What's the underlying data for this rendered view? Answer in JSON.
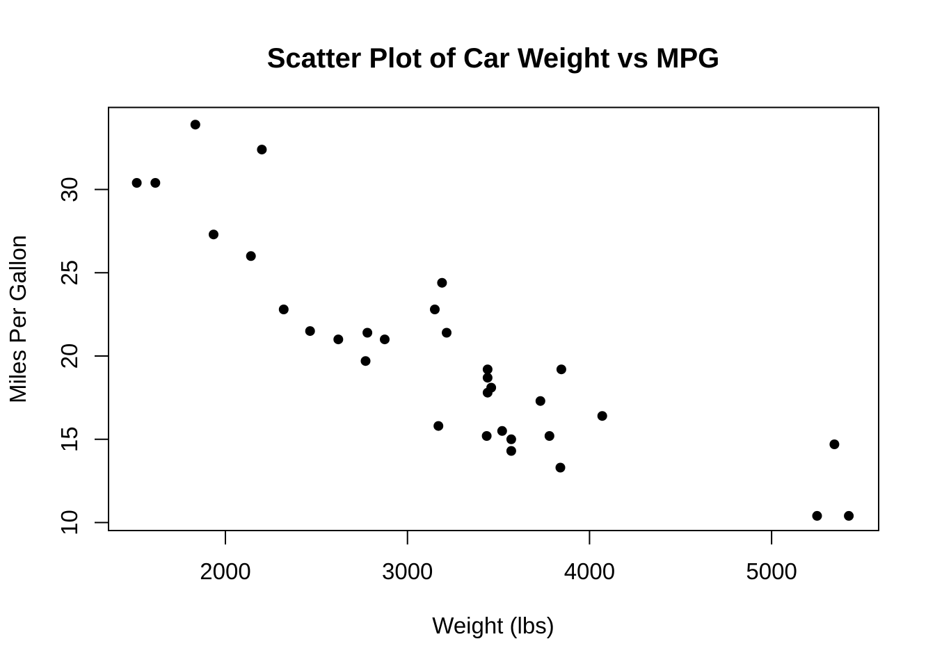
{
  "figure": {
    "background_color": "#ffffff",
    "foreground_color": "#000000"
  },
  "chart_data": {
    "type": "scatter",
    "title": "Scatter Plot of Car Weight vs MPG",
    "xlabel": "Weight (lbs)",
    "ylabel": "Miles Per Gallon",
    "xlim": [
      1358,
      5588
    ],
    "ylim": [
      9.52,
      34.93
    ],
    "x_ticks": [
      2000,
      3000,
      4000,
      5000
    ],
    "y_ticks": [
      10,
      15,
      20,
      25,
      30
    ],
    "grid": false,
    "legend": false,
    "marker": {
      "shape": "filled-circle",
      "radius_px": 7,
      "color": "#000000"
    },
    "points": [
      [
        2620,
        21.0
      ],
      [
        2875,
        21.0
      ],
      [
        2320,
        22.8
      ],
      [
        3215,
        21.4
      ],
      [
        3440,
        18.7
      ],
      [
        3460,
        18.1
      ],
      [
        3570,
        14.3
      ],
      [
        3190,
        24.4
      ],
      [
        3150,
        22.8
      ],
      [
        3440,
        19.2
      ],
      [
        3440,
        17.8
      ],
      [
        4070,
        16.4
      ],
      [
        3730,
        17.3
      ],
      [
        3780,
        15.2
      ],
      [
        5250,
        10.4
      ],
      [
        5424,
        10.4
      ],
      [
        5345,
        14.7
      ],
      [
        2200,
        32.4
      ],
      [
        1615,
        30.4
      ],
      [
        1835,
        33.9
      ],
      [
        2465,
        21.5
      ],
      [
        3520,
        15.5
      ],
      [
        3435,
        15.2
      ],
      [
        3840,
        13.3
      ],
      [
        3845,
        19.2
      ],
      [
        1935,
        27.3
      ],
      [
        2140,
        26.0
      ],
      [
        1513,
        30.4
      ],
      [
        3170,
        15.8
      ],
      [
        2770,
        19.7
      ],
      [
        3570,
        15.0
      ],
      [
        2780,
        21.4
      ]
    ]
  }
}
